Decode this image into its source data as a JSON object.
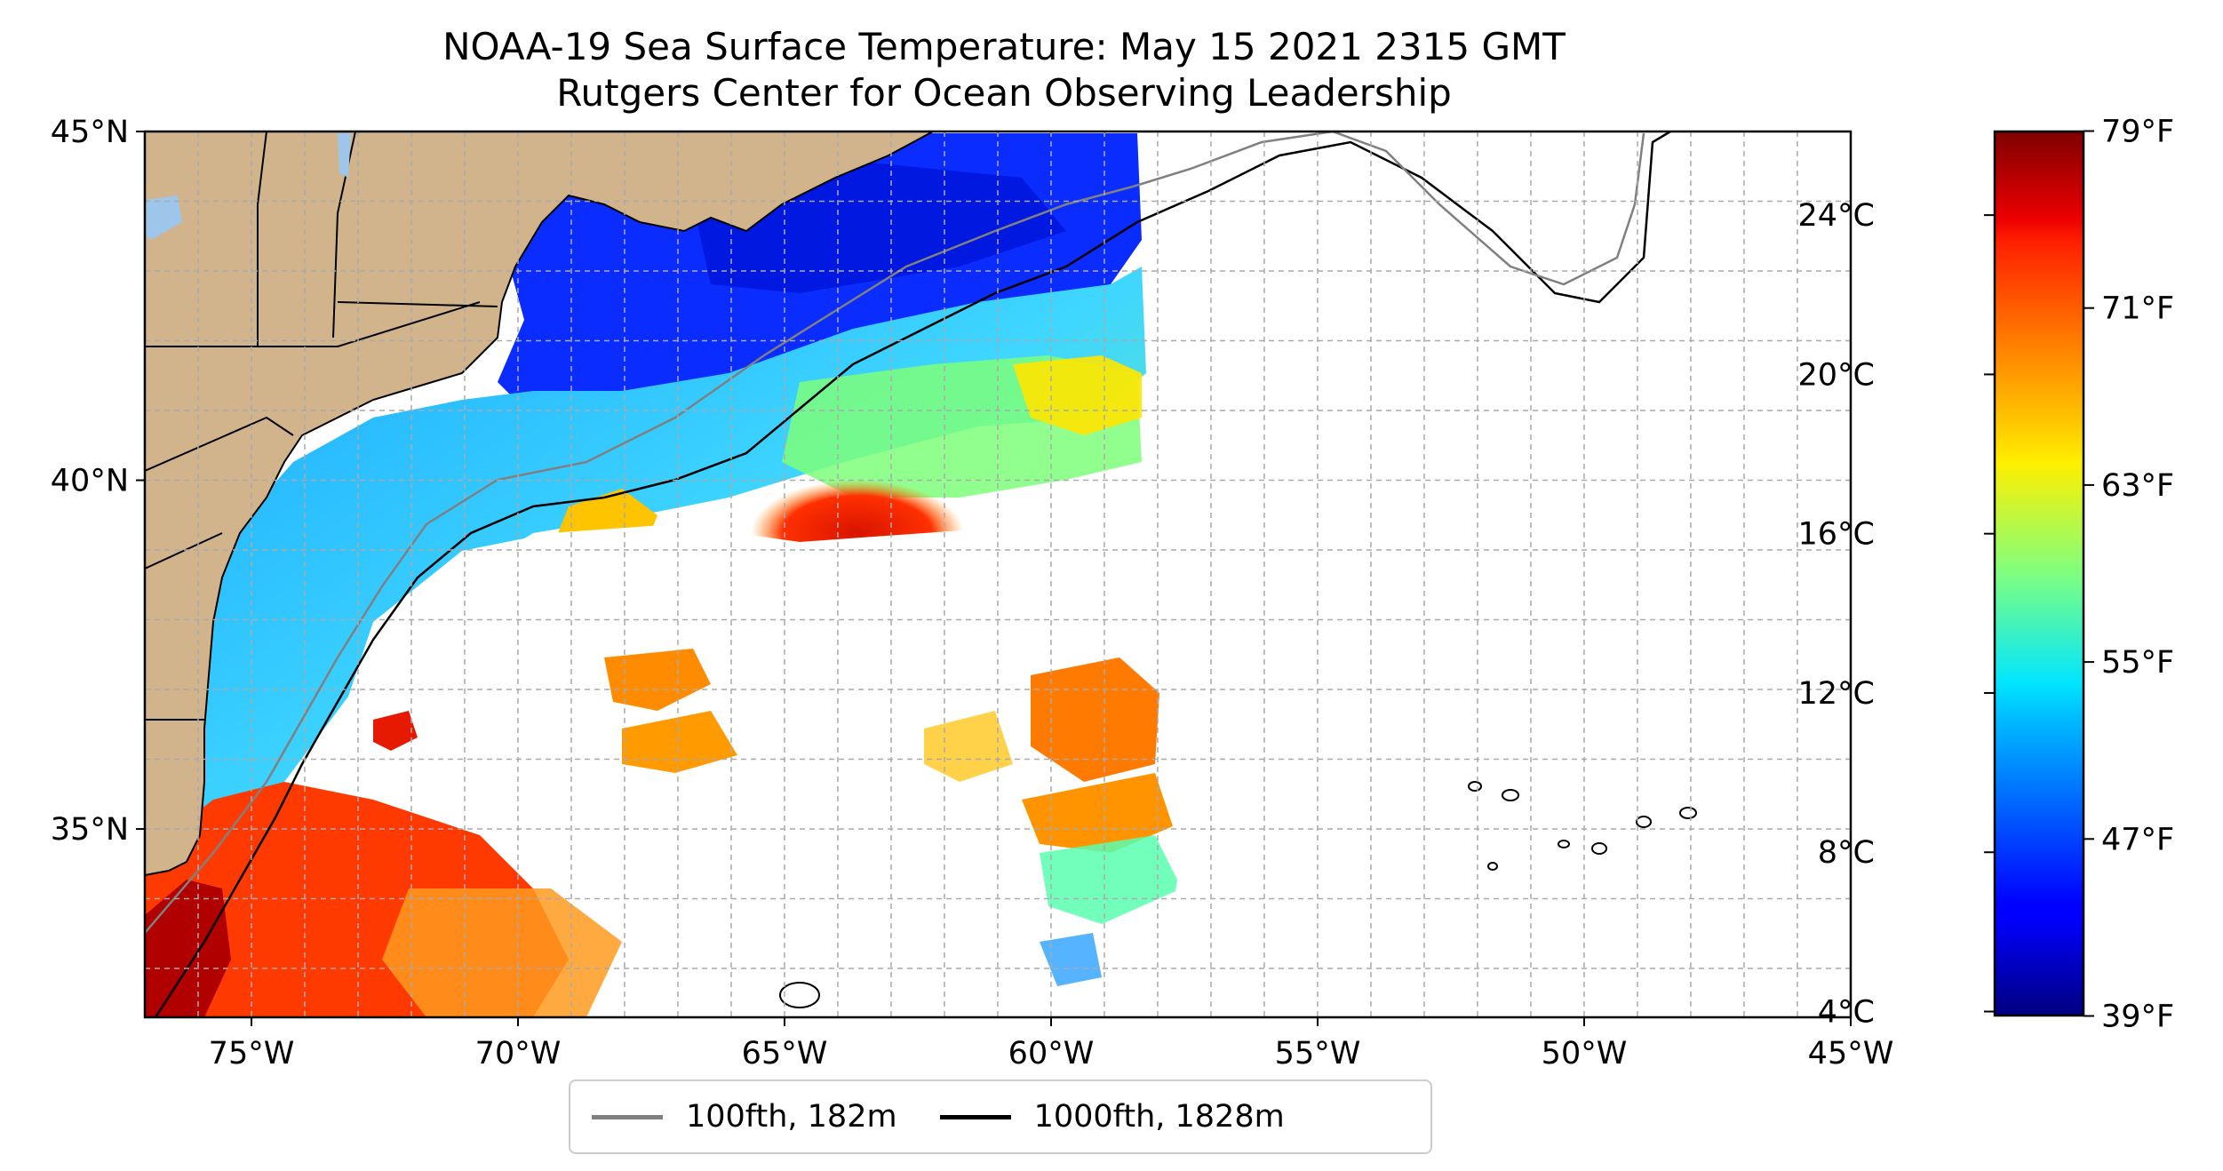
{
  "title": {
    "line1": "NOAA-19 Sea Surface Temperature: May 15 2021 2315 GMT",
    "line2": "Rutgers Center for Ocean Observing Leadership"
  },
  "map": {
    "projection": "equirectangular",
    "lon_range": [
      -77,
      -45
    ],
    "lat_range": [
      32.3,
      45
    ],
    "gridlines": "dashed",
    "lon_ticks": [
      {
        "value": -75,
        "label": "75°W"
      },
      {
        "value": -70,
        "label": "70°W"
      },
      {
        "value": -65,
        "label": "65°W"
      },
      {
        "value": -60,
        "label": "60°W"
      },
      {
        "value": -55,
        "label": "55°W"
      },
      {
        "value": -50,
        "label": "50°W"
      },
      {
        "value": -45,
        "label": "45°W"
      }
    ],
    "lat_ticks": [
      {
        "value": 45,
        "label": "45°N"
      },
      {
        "value": 40,
        "label": "40°N"
      },
      {
        "value": 35,
        "label": "35°N"
      }
    ],
    "colors": {
      "land": "#d2b48c",
      "no_data": "#ffffff",
      "contour_100fth": "#808080",
      "contour_1000fth": "#000000"
    }
  },
  "colorbar": {
    "colormap": "jet",
    "celsius_range": [
      3.9,
      26.1
    ],
    "celsius_ticks": [
      {
        "value": 24,
        "label": "24°C"
      },
      {
        "value": 20,
        "label": "20°C"
      },
      {
        "value": 16,
        "label": "16°C"
      },
      {
        "value": 12,
        "label": "12°C"
      },
      {
        "value": 8,
        "label": "8°C"
      },
      {
        "value": 4,
        "label": "4°C"
      }
    ],
    "fahrenheit_ticks": [
      {
        "value": 79,
        "label": "79°F"
      },
      {
        "value": 71,
        "label": "71°F"
      },
      {
        "value": 63,
        "label": "63°F"
      },
      {
        "value": 55,
        "label": "55°F"
      },
      {
        "value": 47,
        "label": "47°F"
      },
      {
        "value": 39,
        "label": "39°F"
      }
    ]
  },
  "legend": {
    "items": [
      {
        "label": "100fth, 182m",
        "color": "#808080"
      },
      {
        "label": "1000fth, 1828m",
        "color": "#000000"
      }
    ]
  }
}
